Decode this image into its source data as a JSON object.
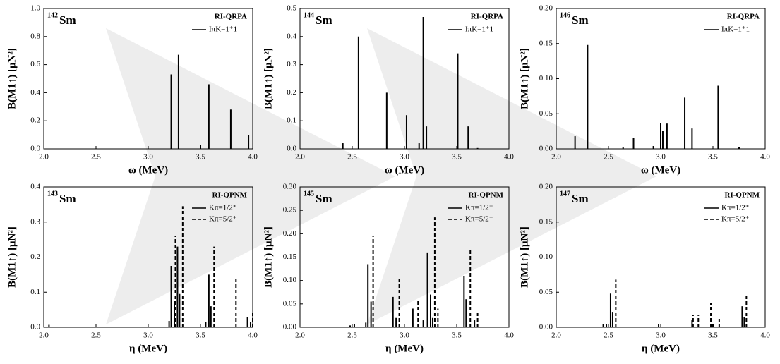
{
  "chart_data": [
    {
      "type": "stem",
      "label_mass": "142",
      "label_symbol": "Sm",
      "model": "RI-QRPA",
      "xlabel": "ω (MeV)",
      "ylabel": "B(M1↑) [μN²]",
      "xlim": [
        2.0,
        4.0
      ],
      "xticks": [
        {
          "value": 2.0,
          "label": "2.0"
        },
        {
          "value": 2.5,
          "label": "2.5"
        },
        {
          "value": 3.0,
          "label": "3.0"
        },
        {
          "value": 3.5,
          "label": "3.5"
        },
        {
          "value": 4.0,
          "label": "4.0"
        }
      ],
      "ylim": [
        0,
        1.0
      ],
      "yticks": [
        {
          "value": 0,
          "label": "0.0"
        },
        0.2,
        0.4,
        0.6,
        0.8,
        {
          "value": 1.0,
          "label": "1.0"
        }
      ],
      "series": [
        {
          "name": "IπK=1⁺1",
          "color": "#000000",
          "style": "solid",
          "x": [
            3.22,
            3.29,
            3.5,
            3.58,
            3.79,
            3.96
          ],
          "values": [
            0.53,
            0.67,
            0.03,
            0.46,
            0.28,
            0.1
          ]
        }
      ]
    },
    {
      "type": "stem",
      "label_mass": "144",
      "label_symbol": "Sm",
      "model": "RI-QRPA",
      "xlabel": "ω (MeV)",
      "ylabel": "B(M1↑) [μN²]",
      "xlim": [
        2.0,
        4.0
      ],
      "xticks": [
        {
          "value": 2.0,
          "label": "2.0"
        },
        {
          "value": 2.5,
          "label": "2.5"
        },
        {
          "value": 3.0,
          "label": "3.0"
        },
        {
          "value": 3.5,
          "label": "3.5"
        },
        {
          "value": 4.0,
          "label": "4.0"
        }
      ],
      "ylim": [
        0,
        0.5
      ],
      "yticks": [
        {
          "value": 0,
          "label": "0.0"
        },
        0.1,
        0.2,
        0.3,
        0.4,
        0.5
      ],
      "series": [
        {
          "name": "IπK=1⁺1",
          "color": "#000000",
          "style": "solid",
          "x": [
            2.41,
            2.56,
            2.83,
            3.02,
            3.14,
            3.18,
            3.21,
            3.51,
            3.61,
            3.7
          ],
          "values": [
            0.02,
            0.4,
            0.2,
            0.12,
            0.02,
            0.47,
            0.08,
            0.34,
            0.08,
            0.003
          ]
        }
      ]
    },
    {
      "type": "stem",
      "label_mass": "146",
      "label_symbol": "Sm",
      "model": "RI-QRPA",
      "xlabel": "ω (MeV)",
      "ylabel": "B(M1↑) [μN²]",
      "xlim": [
        2.0,
        4.0
      ],
      "xticks": [
        {
          "value": 2.0,
          "label": "2.0"
        },
        {
          "value": 2.5,
          "label": "2.5"
        },
        {
          "value": 3.0,
          "label": "3.0"
        },
        {
          "value": 3.5,
          "label": "3.5"
        },
        {
          "value": 4.0,
          "label": "4.0"
        }
      ],
      "ylim": [
        0,
        0.2
      ],
      "yticks": [
        {
          "value": 0,
          "label": "0.00"
        },
        0.05,
        {
          "value": 0.1,
          "label": "0.10"
        },
        0.15,
        {
          "value": 0.2,
          "label": "0.20"
        }
      ],
      "series": [
        {
          "name": "IπK=1⁺1",
          "color": "#000000",
          "style": "solid",
          "x": [
            2.18,
            2.3,
            2.64,
            2.74,
            2.93,
            3.0,
            3.02,
            3.06,
            3.23,
            3.3,
            3.55,
            3.75
          ],
          "values": [
            0.018,
            0.148,
            0.003,
            0.016,
            0.004,
            0.037,
            0.026,
            0.036,
            0.073,
            0.029,
            0.09,
            0.002
          ]
        }
      ]
    },
    {
      "type": "stem",
      "label_mass": "143",
      "label_symbol": "Sm",
      "model": "RI-QPNM",
      "xlabel": "η (MeV)",
      "ylabel": "B(M1↑) [μN²]",
      "xlim": [
        2.0,
        4.0
      ],
      "xticks": [
        {
          "value": 2.0,
          "label": "2.0"
        },
        {
          "value": 2.5,
          "label": "2.5"
        },
        {
          "value": 3.0,
          "label": "3.0"
        },
        {
          "value": 3.5,
          "label": "3.5"
        },
        {
          "value": 4.0,
          "label": "4.0"
        }
      ],
      "ylim": [
        0,
        0.4
      ],
      "yticks": [
        {
          "value": 0,
          "label": "0.0"
        },
        0.1,
        0.2,
        0.3,
        0.4
      ],
      "series": [
        {
          "name": "Kπ=1/2⁺",
          "color": "#000000",
          "style": "solid",
          "x": [
            2.05,
            3.2,
            3.22,
            3.25,
            3.28,
            3.3,
            3.55,
            3.58,
            3.6,
            3.95,
            3.98
          ],
          "values": [
            0.007,
            0.018,
            0.175,
            0.075,
            0.23,
            0.095,
            0.015,
            0.15,
            0.06,
            0.03,
            0.015
          ]
        },
        {
          "name": "Kπ=5/2⁺",
          "color": "#000000",
          "style": "dashed",
          "x": [
            3.26,
            3.33,
            3.63,
            3.84,
            4.0
          ],
          "values": [
            0.26,
            0.345,
            0.23,
            0.14,
            0.05
          ]
        }
      ]
    },
    {
      "type": "stem",
      "label_mass": "145",
      "label_symbol": "Sm",
      "model": "RI-QPNM",
      "xlabel": "η (MeV)",
      "ylabel": "B(M1↑) [μN²]",
      "xlim": [
        2.0,
        4.0
      ],
      "xticks": [
        {
          "value": 2.0,
          "label": "2.0"
        },
        {
          "value": 2.5,
          "label": "2.5"
        },
        {
          "value": 3.0,
          "label": "3.0"
        },
        {
          "value": 3.5,
          "label": "3.5"
        },
        {
          "value": 4.0,
          "label": "4.0"
        }
      ],
      "ylim": [
        0,
        0.3
      ],
      "yticks": [
        {
          "value": 0,
          "label": "0.00"
        },
        0.05,
        {
          "value": 0.1,
          "label": "0.10"
        },
        0.15,
        {
          "value": 0.2,
          "label": "0.20"
        },
        0.25,
        {
          "value": 0.3,
          "label": "0.30"
        }
      ],
      "series": [
        {
          "name": "Kπ=1/2⁺",
          "color": "#000000",
          "style": "solid",
          "x": [
            2.48,
            2.63,
            2.65,
            2.68,
            2.89,
            2.92,
            3.08,
            3.18,
            3.22,
            3.25,
            3.27,
            3.57,
            3.59,
            3.67
          ],
          "values": [
            0.004,
            0.01,
            0.135,
            0.055,
            0.065,
            0.02,
            0.04,
            0.015,
            0.16,
            0.07,
            0.02,
            0.11,
            0.06,
            0.015
          ]
        },
        {
          "name": "Kπ=5/2⁺",
          "color": "#000000",
          "style": "dashed",
          "x": [
            2.52,
            2.7,
            2.95,
            3.13,
            3.29,
            3.32,
            3.63,
            3.7
          ],
          "values": [
            0.008,
            0.195,
            0.105,
            0.06,
            0.235,
            0.04,
            0.17,
            0.035
          ]
        }
      ]
    },
    {
      "type": "stem",
      "label_mass": "147",
      "label_symbol": "Sm",
      "model": "RI-QPNM",
      "xlabel": "η (MeV)",
      "ylabel": "B(M1↑) [μN²]",
      "xlim": [
        2.0,
        4.0
      ],
      "xticks": [
        {
          "value": 2.0,
          "label": "2.0"
        },
        {
          "value": 2.5,
          "label": "2.5"
        },
        {
          "value": 3.0,
          "label": "3.0"
        },
        {
          "value": 3.5,
          "label": "3.5"
        },
        {
          "value": 4.0,
          "label": "4.0"
        }
      ],
      "ylim": [
        0,
        0.2
      ],
      "yticks": [
        {
          "value": 0,
          "label": "0.00"
        },
        0.05,
        {
          "value": 0.1,
          "label": "0.10"
        },
        0.15,
        {
          "value": 0.2,
          "label": "0.20"
        }
      ],
      "series": [
        {
          "name": "Kπ=1/2⁺",
          "color": "#000000",
          "style": "solid",
          "x": [
            2.45,
            2.52,
            2.54,
            3.3,
            3.5,
            3.78,
            3.8
          ],
          "values": [
            0.005,
            0.048,
            0.022,
            0.01,
            0.005,
            0.03,
            0.015
          ]
        },
        {
          "name": "Kπ=5/2⁺",
          "color": "#000000",
          "style": "dashed",
          "x": [
            2.48,
            2.57,
            2.98,
            3.31,
            3.36,
            3.48,
            3.56,
            3.82
          ],
          "values": [
            0.006,
            0.068,
            0.006,
            0.018,
            0.017,
            0.035,
            0.012,
            0.047
          ]
        }
      ]
    }
  ]
}
